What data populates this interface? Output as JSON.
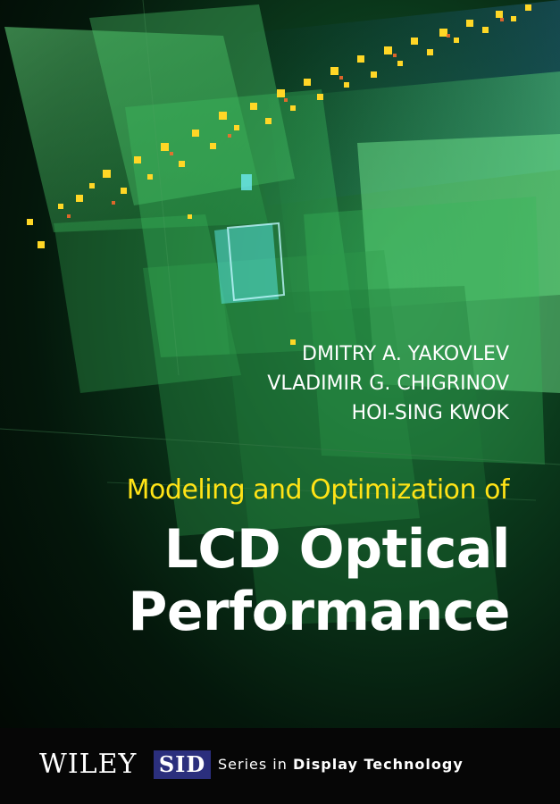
{
  "cover": {
    "authors": [
      "DMITRY A. YAKOVLEV",
      "VLADIMIR G. CHIGRINOV",
      "HOI-SING KWOK"
    ],
    "subtitle": "Modeling and Optimization of",
    "title_lines": [
      "LCD Optical",
      "Performance"
    ],
    "colors": {
      "subtitle": "#ffe316",
      "title": "#ffffff",
      "accent_green": "#3fd06a",
      "sid_badge": "#2b2f7d"
    }
  },
  "footer": {
    "publisher": "WILEY",
    "badge": "SID",
    "series_prefix": "Series in",
    "series_name": "Display Technology"
  }
}
